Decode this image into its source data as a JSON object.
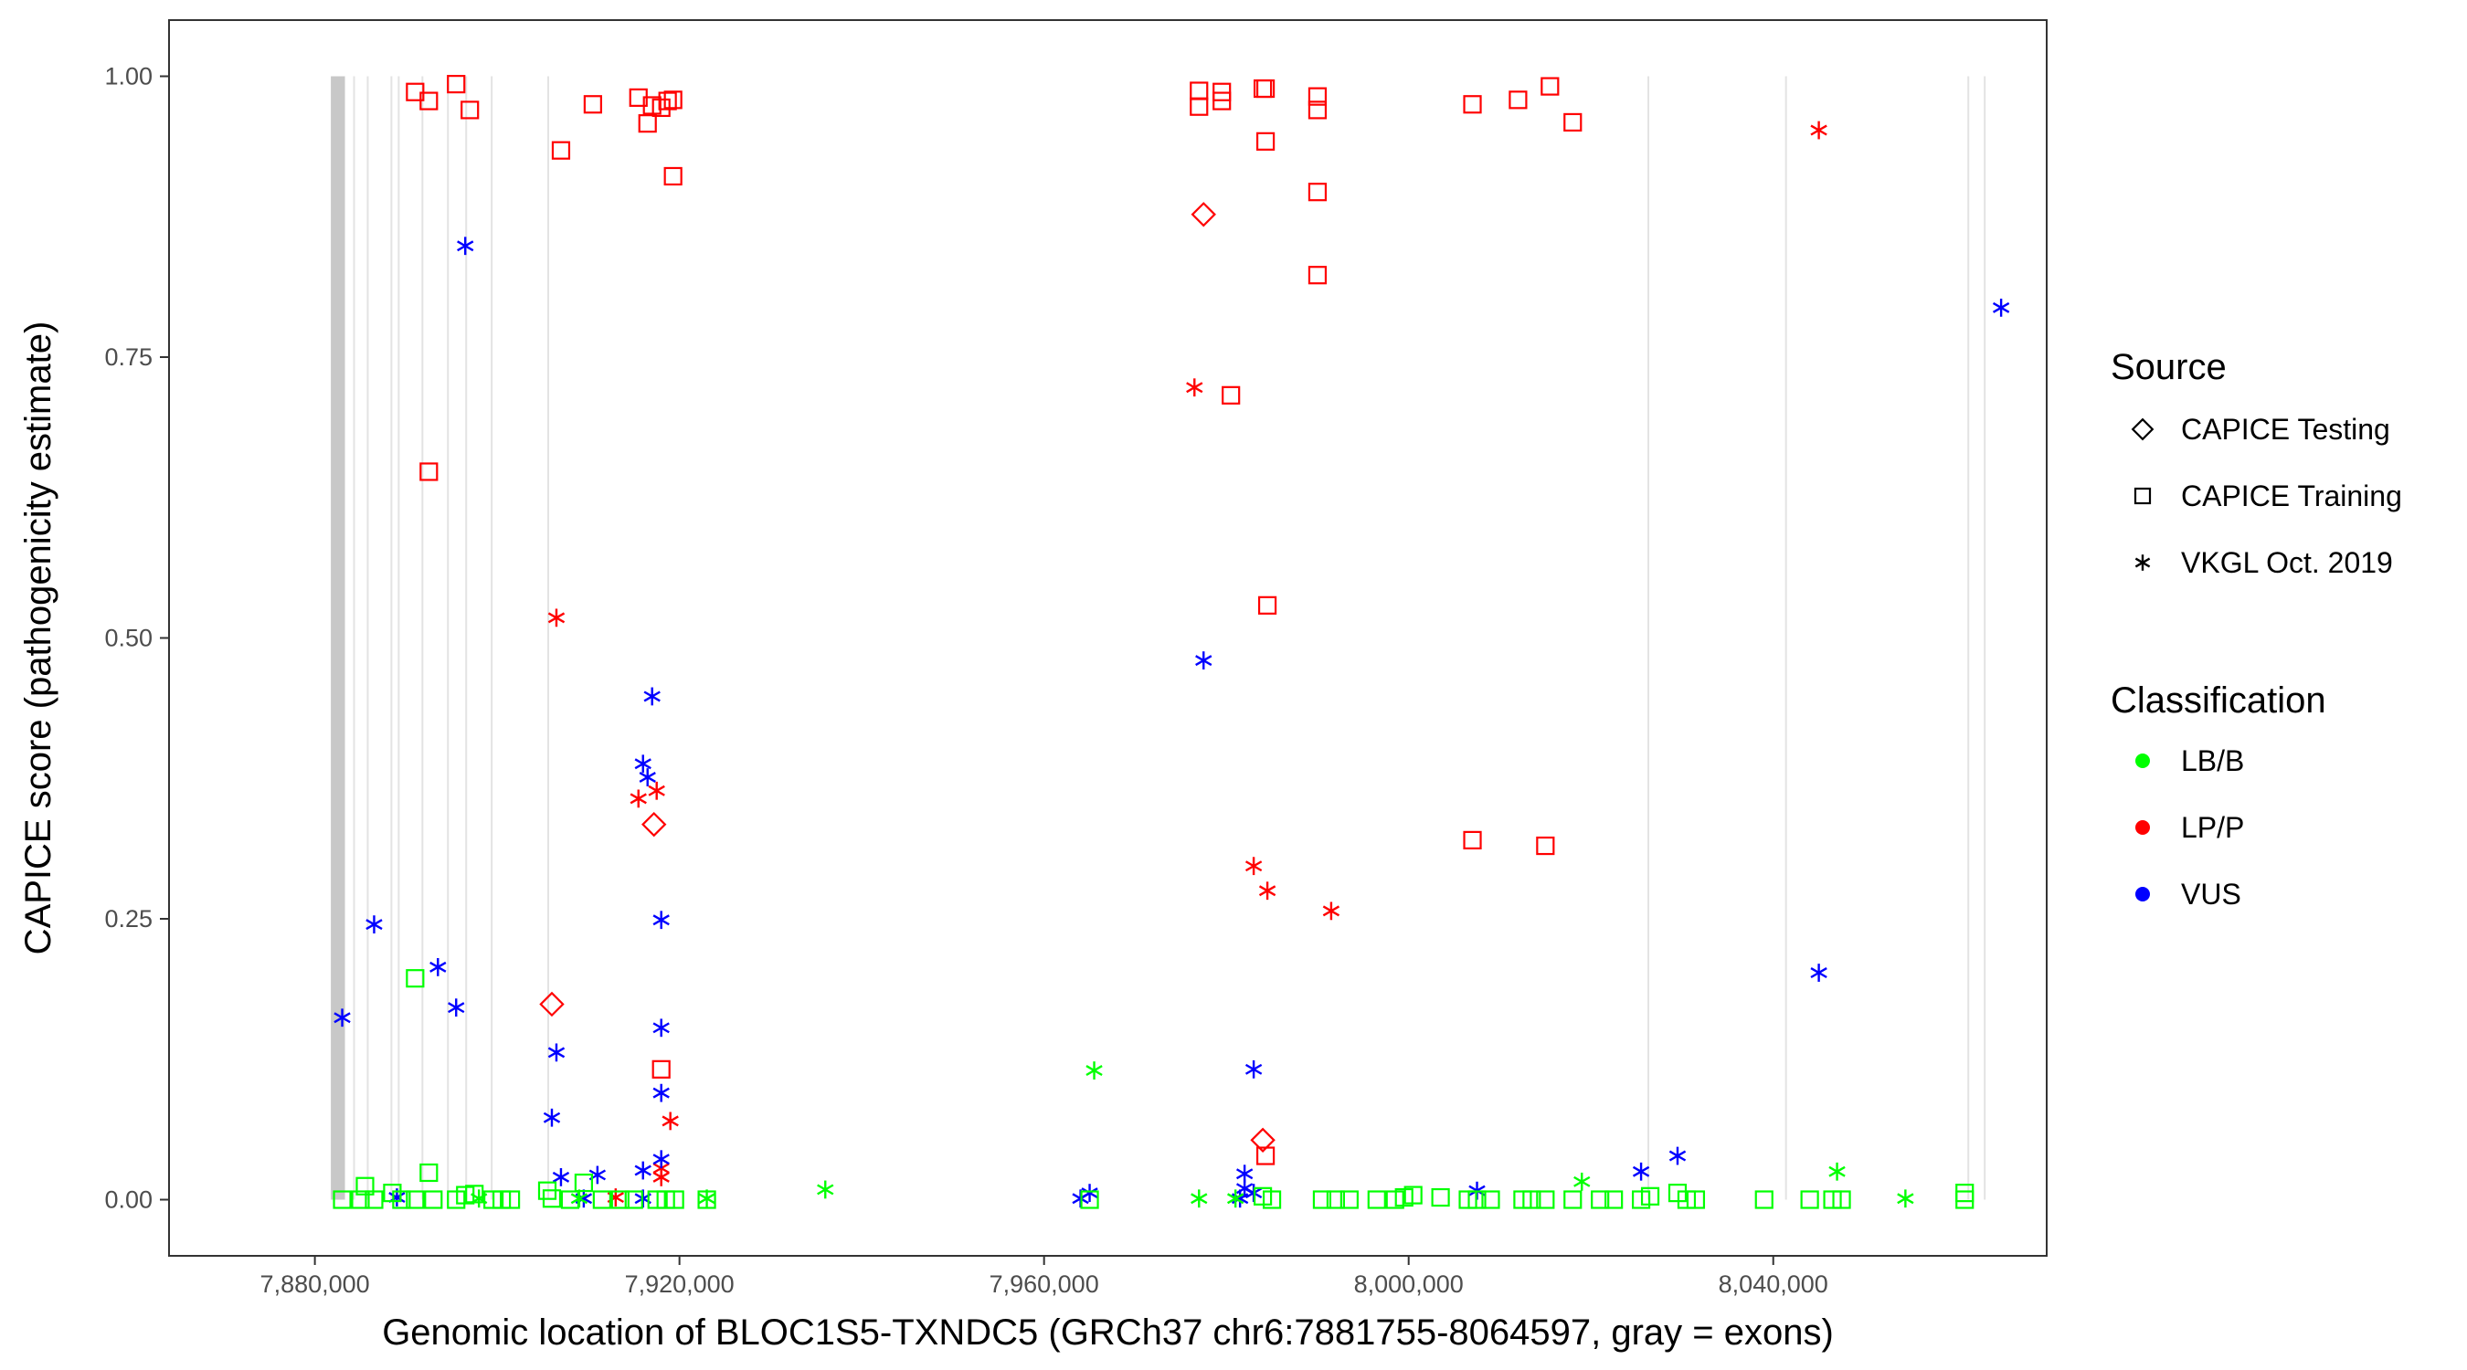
{
  "chart_data": {
    "type": "scatter",
    "xlabel": "Genomic location of BLOC1S5-TXNDC5 (GRCh37 chr6:7881755-8064597, gray = exons)",
    "ylabel": "CAPICE score (pathogenicity estimate)",
    "xlim": [
      7864000,
      8070000
    ],
    "ylim": [
      -0.05,
      1.05
    ],
    "x_ticks": [
      7880000,
      7920000,
      7960000,
      8000000,
      8040000
    ],
    "x_tick_labels": [
      "7,880,000",
      "7,920,000",
      "7,960,000",
      "8,000,000",
      "8,040,000"
    ],
    "y_ticks": [
      0,
      0.25,
      0.5,
      0.75,
      1.0
    ],
    "y_tick_labels": [
      "0.00",
      "0.25",
      "0.50",
      "0.75",
      "1.00"
    ],
    "grid": false,
    "exon_color": "#c8c8c8",
    "exon_line_color": "#e3e3e3",
    "exon_block": [
      7881755,
      7883300
    ],
    "exon_lines": [
      7884300,
      7885800,
      7888400,
      7889200,
      7891800,
      7894600,
      7896600,
      7899400,
      7905600,
      8026300,
      8041400,
      8061400,
      8063200
    ],
    "legend_position": "right",
    "legend": {
      "source_title": "Source",
      "source_items": [
        {
          "label": "CAPICE Testing",
          "shape": "diamond"
        },
        {
          "label": "CAPICE Training",
          "shape": "square"
        },
        {
          "label": "VKGL Oct. 2019",
          "shape": "asterisk"
        }
      ],
      "class_title": "Classification",
      "class_items": [
        {
          "label": "LB/B",
          "color": "#00ff00"
        },
        {
          "label": "LP/P",
          "color": "#ff0000"
        },
        {
          "label": "VUS",
          "color": "#0000ff"
        }
      ]
    },
    "series": [
      {
        "source": "CAPICE Training",
        "classification": "LP/P",
        "shape": "square",
        "color": "#ff0000",
        "points": [
          [
            7891000,
            0.986
          ],
          [
            7892500,
            0.978
          ],
          [
            7895500,
            0.993
          ],
          [
            7897000,
            0.97
          ],
          [
            7907000,
            0.934
          ],
          [
            7910500,
            0.975
          ],
          [
            7915500,
            0.981
          ],
          [
            7916500,
            0.958
          ],
          [
            7917000,
            0.974
          ],
          [
            7918000,
            0.972
          ],
          [
            7918700,
            0.978
          ],
          [
            7919300,
            0.979
          ],
          [
            7919300,
            0.911
          ],
          [
            7892500,
            0.648
          ],
          [
            7977000,
            0.987
          ],
          [
            7977000,
            0.973
          ],
          [
            7979500,
            0.986
          ],
          [
            7979500,
            0.978
          ],
          [
            7984000,
            0.989
          ],
          [
            7984300,
            0.989
          ],
          [
            7984300,
            0.942
          ],
          [
            7990000,
            0.982
          ],
          [
            7990000,
            0.97
          ],
          [
            7990000,
            0.897
          ],
          [
            7990000,
            0.823
          ],
          [
            7980500,
            0.716
          ],
          [
            7984500,
            0.529
          ],
          [
            8007000,
            0.975
          ],
          [
            8012000,
            0.979
          ],
          [
            8015500,
            0.991
          ],
          [
            8018000,
            0.959
          ],
          [
            8007000,
            0.32
          ],
          [
            8015000,
            0.315
          ],
          [
            7918000,
            0.116
          ],
          [
            7984300,
            0.039
          ]
        ]
      },
      {
        "source": "CAPICE Testing",
        "classification": "LP/P",
        "shape": "diamond",
        "color": "#ff0000",
        "points": [
          [
            7977500,
            0.877
          ],
          [
            7906000,
            0.174
          ],
          [
            7917200,
            0.334
          ],
          [
            7984000,
            0.053
          ]
        ]
      },
      {
        "source": "VKGL Oct. 2019",
        "classification": "LP/P",
        "shape": "asterisk",
        "color": "#ff0000",
        "points": [
          [
            8045000,
            0.952
          ],
          [
            7976500,
            0.723
          ],
          [
            7906500,
            0.518
          ],
          [
            7983000,
            0.297
          ],
          [
            7984500,
            0.275
          ],
          [
            7991500,
            0.257
          ],
          [
            7915500,
            0.357
          ],
          [
            7917500,
            0.364
          ],
          [
            7919000,
            0.07
          ],
          [
            7918000,
            0.028
          ],
          [
            7918000,
            0.02
          ],
          [
            7913000,
            0.002
          ]
        ]
      },
      {
        "source": "VKGL Oct. 2019",
        "classification": "VUS",
        "shape": "asterisk",
        "color": "#0000ff",
        "points": [
          [
            7896500,
            0.849
          ],
          [
            8065000,
            0.794
          ],
          [
            7977500,
            0.48
          ],
          [
            7917000,
            0.448
          ],
          [
            7916000,
            0.388
          ],
          [
            7916500,
            0.376
          ],
          [
            7918000,
            0.249
          ],
          [
            7886500,
            0.245
          ],
          [
            7893500,
            0.207
          ],
          [
            7895500,
            0.171
          ],
          [
            7883000,
            0.162
          ],
          [
            7918000,
            0.153
          ],
          [
            7906500,
            0.131
          ],
          [
            7983000,
            0.116
          ],
          [
            7918000,
            0.095
          ],
          [
            7906000,
            0.073
          ],
          [
            8045000,
            0.202
          ],
          [
            7918000,
            0.036
          ],
          [
            7907000,
            0.02
          ],
          [
            7911000,
            0.022
          ],
          [
            7916000,
            0.026
          ],
          [
            7982000,
            0.023
          ],
          [
            7982000,
            0.01
          ],
          [
            7983000,
            0.006
          ],
          [
            8029500,
            0.039
          ],
          [
            8025500,
            0.025
          ],
          [
            8007500,
            0.008
          ],
          [
            7965000,
            0.006
          ],
          [
            7964000,
            0.001
          ],
          [
            7981500,
            0.001
          ],
          [
            7916000,
            0.001
          ],
          [
            7889000,
            0.002
          ],
          [
            7909500,
            0.001
          ]
        ]
      },
      {
        "source": "VKGL Oct. 2019",
        "classification": "LB/B",
        "shape": "asterisk",
        "color": "#00ff00",
        "points": [
          [
            7965500,
            0.115
          ],
          [
            7936000,
            0.009
          ],
          [
            8047000,
            0.025
          ],
          [
            8019000,
            0.016
          ],
          [
            7977000,
            0.001
          ],
          [
            7981000,
            0.001
          ],
          [
            8054500,
            0.001
          ],
          [
            7923000,
            0.001
          ],
          [
            7909000,
            0.001
          ],
          [
            7898000,
            0.001
          ]
        ]
      },
      {
        "source": "CAPICE Training",
        "classification": "LB/B",
        "shape": "square",
        "color": "#00ff00",
        "points": [
          [
            7891000,
            0.197
          ],
          [
            7892500,
            0.024
          ],
          [
            7883000,
            0.0
          ],
          [
            7885000,
            0.0
          ],
          [
            7885500,
            0.012
          ],
          [
            7886500,
            0.0
          ],
          [
            7888500,
            0.006
          ],
          [
            7889500,
            0.0
          ],
          [
            7891000,
            0.0
          ],
          [
            7893000,
            0.0
          ],
          [
            7895500,
            0.0
          ],
          [
            7896500,
            0.004
          ],
          [
            7897500,
            0.005
          ],
          [
            7899500,
            0.0
          ],
          [
            7900500,
            0.0
          ],
          [
            7901500,
            0.0
          ],
          [
            7905500,
            0.008
          ],
          [
            7906000,
            0.001
          ],
          [
            7908000,
            0.0
          ],
          [
            7909500,
            0.015
          ],
          [
            7911500,
            0.0
          ],
          [
            7913500,
            0.0
          ],
          [
            7915000,
            0.0
          ],
          [
            7917500,
            0.0
          ],
          [
            7918500,
            0.0
          ],
          [
            7919500,
            0.0
          ],
          [
            7923000,
            0.0
          ],
          [
            7965000,
            0.0
          ],
          [
            7984000,
            0.003
          ],
          [
            7985000,
            0.0
          ],
          [
            7990500,
            0.0
          ],
          [
            7992000,
            0.0
          ],
          [
            7993500,
            0.0
          ],
          [
            7996500,
            0.0
          ],
          [
            7998500,
            0.0
          ],
          [
            7999500,
            0.002
          ],
          [
            8000500,
            0.004
          ],
          [
            8003500,
            0.002
          ],
          [
            8006500,
            0.0
          ],
          [
            8007500,
            0.0
          ],
          [
            8009000,
            0.0
          ],
          [
            8012500,
            0.0
          ],
          [
            8013500,
            0.0
          ],
          [
            8015000,
            0.0
          ],
          [
            8018000,
            0.0
          ],
          [
            8021000,
            0.0
          ],
          [
            8022500,
            0.0
          ],
          [
            8025500,
            0.0
          ],
          [
            8026500,
            0.003
          ],
          [
            8029500,
            0.006
          ],
          [
            8030500,
            0.0
          ],
          [
            8031500,
            0.0
          ],
          [
            8039000,
            0.0
          ],
          [
            8044000,
            0.0
          ],
          [
            8046500,
            0.0
          ],
          [
            8047500,
            0.0
          ],
          [
            8061000,
            0.006
          ],
          [
            8061000,
            0.0
          ]
        ]
      }
    ]
  }
}
